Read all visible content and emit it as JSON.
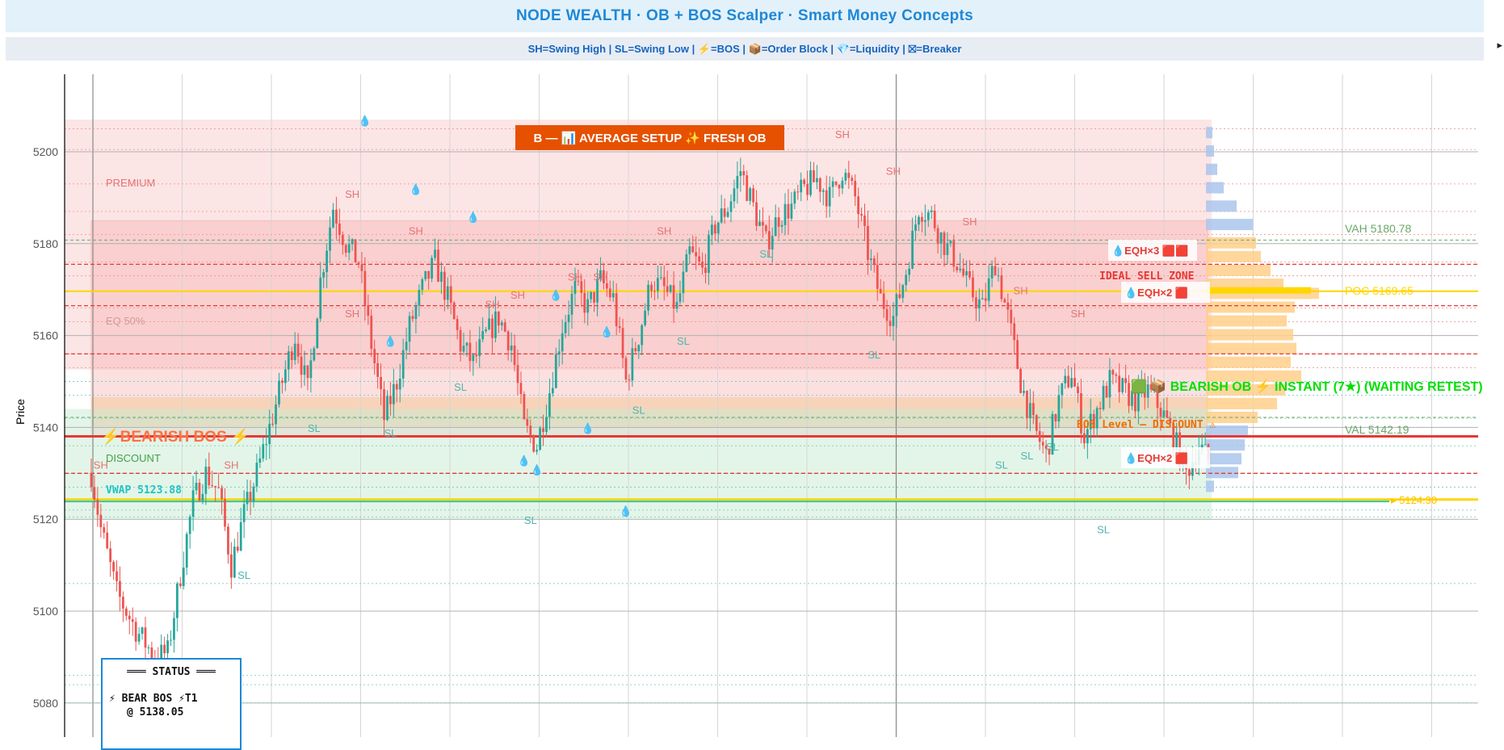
{
  "header": {
    "title": "NODE WEALTH  ·  OB + BOS Scalper  ·  Smart Money Concepts",
    "legend": "SH=Swing High  |  SL=Swing Low  |  ⚡=BOS  |  📦=Order Block  |  💎=Liquidity  |  ⛝=Breaker"
  },
  "banner": {
    "text": "B — 📊 AVERAGE SETUP  ✨ FRESH OB"
  },
  "status": {
    "title": "═══ STATUS ═══",
    "line1": "⚡ BEAR BOS ⚡T1",
    "line2": "@ 5138.05"
  },
  "colors": {
    "premium": "#f9c6c6",
    "discount": "#c8ecd2",
    "eq": "#f3c9a0",
    "up": "#26a69a",
    "down": "#ef5350",
    "poc": "#ffd600",
    "vwap": "#20c4c4",
    "bos": "#e53935",
    "ob": "#00c853",
    "vp_blue": "#aac6ec",
    "vp_orange": "#ffcf8a"
  },
  "chart_data": {
    "type": "candlestick",
    "ylabel": "Price",
    "ylim": [
      5072,
      5214
    ],
    "yticks": [
      5080,
      5100,
      5120,
      5140,
      5160,
      5180,
      5200
    ],
    "anchors": [
      [
        0,
        5130
      ],
      [
        3,
        5118
      ],
      [
        8,
        5104
      ],
      [
        14,
        5096
      ],
      [
        20,
        5090
      ],
      [
        24,
        5091
      ],
      [
        28,
        5108
      ],
      [
        32,
        5124
      ],
      [
        36,
        5130
      ],
      [
        40,
        5126
      ],
      [
        44,
        5110
      ],
      [
        48,
        5121
      ],
      [
        52,
        5130
      ],
      [
        56,
        5140
      ],
      [
        60,
        5150
      ],
      [
        64,
        5160
      ],
      [
        68,
        5148
      ],
      [
        72,
        5172
      ],
      [
        76,
        5188
      ],
      [
        80,
        5180
      ],
      [
        84,
        5176
      ],
      [
        88,
        5158
      ],
      [
        92,
        5142
      ],
      [
        96,
        5150
      ],
      [
        100,
        5162
      ],
      [
        104,
        5170
      ],
      [
        108,
        5176
      ],
      [
        112,
        5168
      ],
      [
        116,
        5158
      ],
      [
        120,
        5154
      ],
      [
        124,
        5160
      ],
      [
        128,
        5164
      ],
      [
        132,
        5158
      ],
      [
        136,
        5140
      ],
      [
        140,
        5136
      ],
      [
        144,
        5148
      ],
      [
        148,
        5162
      ],
      [
        152,
        5170
      ],
      [
        156,
        5166
      ],
      [
        160,
        5172
      ],
      [
        164,
        5168
      ],
      [
        168,
        5150
      ],
      [
        172,
        5160
      ],
      [
        176,
        5172
      ],
      [
        180,
        5170
      ],
      [
        184,
        5166
      ],
      [
        188,
        5178
      ],
      [
        192,
        5174
      ],
      [
        196,
        5184
      ],
      [
        200,
        5188
      ],
      [
        204,
        5196
      ],
      [
        208,
        5188
      ],
      [
        212,
        5180
      ],
      [
        216,
        5186
      ],
      [
        220,
        5188
      ],
      [
        224,
        5192
      ],
      [
        228,
        5194
      ],
      [
        232,
        5190
      ],
      [
        236,
        5196
      ],
      [
        240,
        5190
      ],
      [
        244,
        5178
      ],
      [
        248,
        5168
      ],
      [
        252,
        5164
      ],
      [
        256,
        5174
      ],
      [
        260,
        5188
      ],
      [
        264,
        5186
      ],
      [
        268,
        5180
      ],
      [
        272,
        5176
      ],
      [
        276,
        5170
      ],
      [
        280,
        5166
      ],
      [
        284,
        5176
      ],
      [
        288,
        5164
      ],
      [
        292,
        5150
      ],
      [
        296,
        5140
      ],
      [
        300,
        5134
      ],
      [
        304,
        5146
      ],
      [
        308,
        5152
      ],
      [
        312,
        5138
      ],
      [
        316,
        5144
      ],
      [
        320,
        5150
      ],
      [
        324,
        5148
      ],
      [
        328,
        5146
      ],
      [
        332,
        5148
      ],
      [
        336,
        5144
      ],
      [
        340,
        5138
      ],
      [
        344,
        5130
      ],
      [
        348,
        5136
      ],
      [
        352,
        5132
      ]
    ],
    "swing_labels": [
      {
        "t": "SH",
        "x": 3,
        "y": 5131
      },
      {
        "t": "SH",
        "x": 44,
        "y": 5131
      },
      {
        "t": "SH",
        "x": 82,
        "y": 5190
      },
      {
        "t": "SH",
        "x": 82,
        "y": 5164
      },
      {
        "t": "SH",
        "x": 102,
        "y": 5182
      },
      {
        "t": "SH",
        "x": 126,
        "y": 5166
      },
      {
        "t": "SH",
        "x": 134,
        "y": 5168
      },
      {
        "t": "SH",
        "x": 152,
        "y": 5172
      },
      {
        "t": "SH",
        "x": 160,
        "y": 5172
      },
      {
        "t": "SH",
        "x": 180,
        "y": 5182
      },
      {
        "t": "SH",
        "x": 236,
        "y": 5203
      },
      {
        "t": "SH",
        "x": 252,
        "y": 5195
      },
      {
        "t": "SH",
        "x": 276,
        "y": 5184
      },
      {
        "t": "SH",
        "x": 292,
        "y": 5169
      },
      {
        "t": "SH",
        "x": 310,
        "y": 5164
      },
      {
        "t": "SL",
        "x": 48,
        "y": 5107
      },
      {
        "t": "SL",
        "x": 70,
        "y": 5139
      },
      {
        "t": "SL",
        "x": 94,
        "y": 5138
      },
      {
        "t": "SL",
        "x": 116,
        "y": 5148
      },
      {
        "t": "SL",
        "x": 138,
        "y": 5119
      },
      {
        "t": "SL",
        "x": 172,
        "y": 5143
      },
      {
        "t": "SL",
        "x": 186,
        "y": 5158
      },
      {
        "t": "SL",
        "x": 212,
        "y": 5177
      },
      {
        "t": "SL",
        "x": 246,
        "y": 5155
      },
      {
        "t": "SL",
        "x": 286,
        "y": 5131
      },
      {
        "t": "SL",
        "x": 294,
        "y": 5133
      },
      {
        "t": "SL",
        "x": 302,
        "y": 5135
      },
      {
        "t": "SL",
        "x": 318,
        "y": 5117
      }
    ],
    "liquidity_drops": [
      {
        "x": 86,
        "y": 5206
      },
      {
        "x": 102,
        "y": 5191
      },
      {
        "x": 120,
        "y": 5185
      },
      {
        "x": 94,
        "y": 5158
      },
      {
        "x": 146,
        "y": 5168
      },
      {
        "x": 162,
        "y": 5160
      },
      {
        "x": 156,
        "y": 5139
      },
      {
        "x": 136,
        "y": 5132
      },
      {
        "x": 140,
        "y": 5130
      },
      {
        "x": 168,
        "y": 5121
      }
    ],
    "zones": {
      "premium": [
        5152.6,
        5207
      ],
      "discount": [
        5120,
        5144
      ],
      "eq_band": [
        5140.2,
        5146.6
      ],
      "bearish_ob": [
        5138,
        5185
      ]
    },
    "levels": {
      "vah": 5180.78,
      "poc": 5169.65,
      "val": 5142.19,
      "vwap": 5123.88,
      "last": 5124.3,
      "bos": 5138.05
    },
    "annotations": {
      "premium": "PREMIUM",
      "eq": "EQ 50%",
      "discount": "DISCOUNT",
      "bearish_bos": "⚡BEARISH BOS ⚡",
      "vwap": "VWAP 5123.88",
      "vah": "VAH 5180.78",
      "poc": "POC 5169.65",
      "val": "VAL 5142.19",
      "last": "▸ 5124.30",
      "eqh3": "💧EQH×3 🟥🟥",
      "eqh2a": "💧EQH×2 🟥",
      "eqh2b": "💧EQH×2 🟥",
      "ideal_sell": "IDEAL SELL ZONE",
      "bos_level": "BOS Level — DISCOUNT ⚠",
      "bearish_ob": "🟩 📦 BEARISH OB ⚡ INSTANT (7★) (WAITING RETEST)"
    },
    "volume_profile": {
      "bins": [
        [
          5204,
          8
        ],
        [
          5200,
          10
        ],
        [
          5196,
          14
        ],
        [
          5192,
          22
        ],
        [
          5188,
          38
        ],
        [
          5184,
          58
        ],
        [
          5180,
          62
        ],
        [
          5177,
          68
        ],
        [
          5174,
          80
        ],
        [
          5171,
          96
        ],
        [
          5169,
          140
        ],
        [
          5166,
          110
        ],
        [
          5163,
          100
        ],
        [
          5160,
          108
        ],
        [
          5157,
          112
        ],
        [
          5154,
          105
        ],
        [
          5151,
          118
        ],
        [
          5148,
          98
        ],
        [
          5145,
          88
        ],
        [
          5142,
          64
        ],
        [
          5139,
          52
        ],
        [
          5136,
          48
        ],
        [
          5133,
          44
        ],
        [
          5130,
          40
        ],
        [
          5127,
          10
        ]
      ]
    }
  }
}
